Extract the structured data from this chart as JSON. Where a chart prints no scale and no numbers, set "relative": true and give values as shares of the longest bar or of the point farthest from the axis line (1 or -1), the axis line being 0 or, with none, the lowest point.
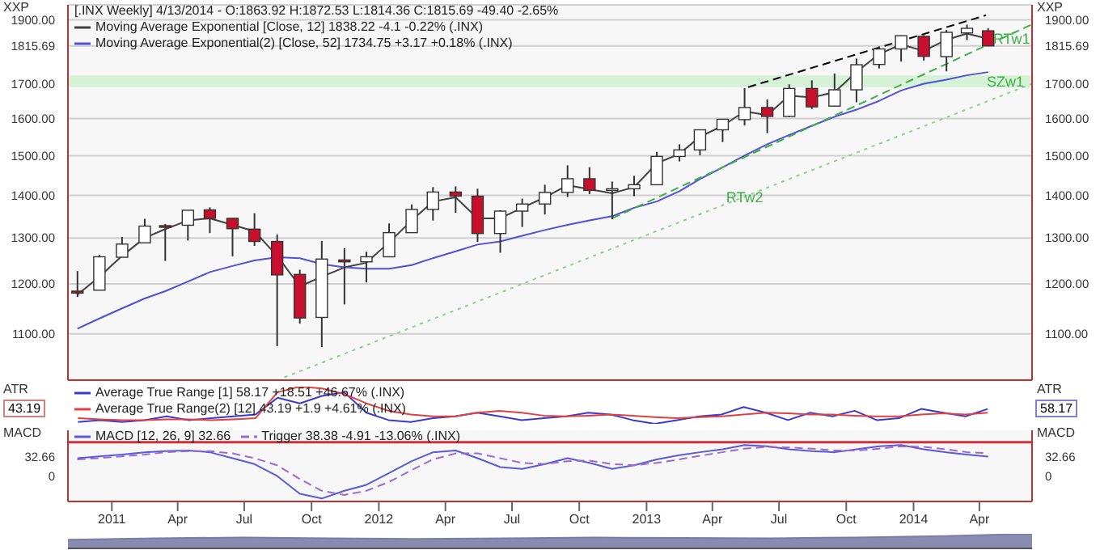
{
  "chart_data": [
    {
      "type": "candlestick",
      "title": "[.INX  Weekly] 4/13/2014 - O:1863.92 H:1872.53 L:1814.36 C:1815.69 -49.40 -2.65%",
      "ylabel": "XXP",
      "y2label": "XXP",
      "x": [
        "2010-11-15",
        "2010-12-15",
        "2011-01-15",
        "2011-02-15",
        "2011-03-15",
        "2011-04-15",
        "2011-05-15",
        "2011-06-15",
        "2011-07-15",
        "2011-08-15",
        "2011-09-15",
        "2011-10-15",
        "2011-11-15",
        "2011-12-15",
        "2012-01-15",
        "2012-02-15",
        "2012-03-15",
        "2012-04-15",
        "2012-05-15",
        "2012-06-15",
        "2012-07-15",
        "2012-08-15",
        "2012-09-15",
        "2012-10-15",
        "2012-11-15",
        "2012-12-15",
        "2013-01-15",
        "2013-02-15",
        "2013-03-15",
        "2013-04-15",
        "2013-05-15",
        "2013-06-15",
        "2013-07-15",
        "2013-08-15",
        "2013-09-15",
        "2013-10-15",
        "2013-11-15",
        "2013-12-15",
        "2014-01-15",
        "2014-02-15",
        "2014-03-15",
        "2014-04-13"
      ],
      "ohlc": [
        [
          1185,
          1227,
          1173,
          1181
        ],
        [
          1187,
          1262,
          1187,
          1258
        ],
        [
          1257,
          1302,
          1257,
          1286
        ],
        [
          1289,
          1344,
          1289,
          1327
        ],
        [
          1328,
          1332,
          1249,
          1326
        ],
        [
          1329,
          1364,
          1294,
          1364
        ],
        [
          1365,
          1371,
          1311,
          1345
        ],
        [
          1345,
          1345,
          1259,
          1321
        ],
        [
          1320,
          1357,
          1282,
          1292
        ],
        [
          1292,
          1308,
          1077,
          1219
        ],
        [
          1220,
          1230,
          1120,
          1131
        ],
        [
          1132,
          1293,
          1075,
          1253
        ],
        [
          1251,
          1277,
          1158,
          1247
        ],
        [
          1247,
          1269,
          1203,
          1258
        ],
        [
          1258,
          1333,
          1258,
          1312
        ],
        [
          1312,
          1378,
          1312,
          1366
        ],
        [
          1366,
          1420,
          1340,
          1408
        ],
        [
          1408,
          1422,
          1358,
          1398
        ],
        [
          1398,
          1416,
          1291,
          1310
        ],
        [
          1310,
          1364,
          1267,
          1362
        ],
        [
          1362,
          1392,
          1325,
          1379
        ],
        [
          1379,
          1426,
          1354,
          1407
        ],
        [
          1407,
          1475,
          1396,
          1441
        ],
        [
          1441,
          1470,
          1403,
          1412
        ],
        [
          1412,
          1434,
          1343,
          1416
        ],
        [
          1416,
          1448,
          1398,
          1426
        ],
        [
          1426,
          1510,
          1426,
          1498
        ],
        [
          1498,
          1530,
          1485,
          1515
        ],
        [
          1515,
          1570,
          1501,
          1569
        ],
        [
          1569,
          1598,
          1536,
          1598
        ],
        [
          1597,
          1687,
          1581,
          1631
        ],
        [
          1631,
          1654,
          1560,
          1606
        ],
        [
          1606,
          1698,
          1604,
          1686
        ],
        [
          1686,
          1710,
          1627,
          1633
        ],
        [
          1635,
          1730,
          1633,
          1682
        ],
        [
          1682,
          1776,
          1646,
          1757
        ],
        [
          1758,
          1814,
          1746,
          1806
        ],
        [
          1806,
          1849,
          1767,
          1848
        ],
        [
          1846,
          1850,
          1770,
          1783
        ],
        [
          1782,
          1867,
          1737,
          1859
        ],
        [
          1857,
          1884,
          1834,
          1872
        ],
        [
          1863.92,
          1872.53,
          1814.36,
          1815.69
        ]
      ],
      "colors": [
        "#c8102e",
        "#ffffff",
        "#ffffff",
        "#ffffff",
        "#c8102e",
        "#ffffff",
        "#c8102e",
        "#c8102e",
        "#c8102e",
        "#c8102e",
        "#c8102e",
        "#ffffff",
        "#c8102e",
        "#ffffff",
        "#ffffff",
        "#ffffff",
        "#ffffff",
        "#c8102e",
        "#c8102e",
        "#ffffff",
        "#ffffff",
        "#ffffff",
        "#ffffff",
        "#c8102e",
        "#ffffff",
        "#ffffff",
        "#ffffff",
        "#ffffff",
        "#ffffff",
        "#ffffff",
        "#ffffff",
        "#c8102e",
        "#ffffff",
        "#c8102e",
        "#ffffff",
        "#ffffff",
        "#ffffff",
        "#ffffff",
        "#c8102e",
        "#ffffff",
        "#ffffff",
        "#c8102e"
      ],
      "series": [
        {
          "type": "line",
          "name": "Moving Average Exponential [Close, 12] 1838.22 -4.1 -0.22% (.INX)",
          "color": "#404040",
          "values": [
            1178,
            1215,
            1260,
            1300,
            1320,
            1340,
            1345,
            1330,
            1315,
            1260,
            1195,
            1215,
            1235,
            1245,
            1290,
            1340,
            1385,
            1395,
            1345,
            1345,
            1370,
            1395,
            1425,
            1415,
            1405,
            1420,
            1480,
            1505,
            1550,
            1580,
            1620,
            1610,
            1665,
            1660,
            1675,
            1735,
            1790,
            1820,
            1800,
            1835,
            1855,
            1838.22
          ]
        },
        {
          "type": "line",
          "name": "Moving Average Exponential(2) [Close, 52] 1734.75 +3.17 +0.18% (.INX)",
          "color": "#5050d8",
          "values": [
            1110,
            1130,
            1150,
            1170,
            1185,
            1205,
            1225,
            1238,
            1250,
            1257,
            1255,
            1242,
            1235,
            1232,
            1232,
            1240,
            1255,
            1270,
            1285,
            1292,
            1305,
            1318,
            1330,
            1340,
            1350,
            1370,
            1385,
            1410,
            1440,
            1470,
            1500,
            1530,
            1555,
            1580,
            1605,
            1625,
            1650,
            1680,
            1700,
            1712,
            1725,
            1734.75
          ]
        },
        {
          "type": "line",
          "color": "#000000",
          "line_style": "dashed",
          "x": [
            "2013-05-20",
            "2014-04-10"
          ],
          "values": [
            1690,
            1915
          ]
        },
        {
          "type": "line",
          "color": "#3cb043",
          "line_style": "dashed",
          "x": [
            "2012-11-15",
            "2014-06-12"
          ],
          "values": [
            1345,
            1885
          ]
        },
        {
          "type": "line",
          "color": "#8fd08f",
          "line_style": "dotted",
          "x": [
            "2011-08-25",
            "2014-06-12"
          ],
          "values": [
            1020,
            1700
          ]
        }
      ],
      "bands": [
        {
          "axis": "y",
          "from": 1690,
          "to": 1725,
          "label": "SZw1",
          "color": "#d6f2d6"
        }
      ],
      "annotations": [
        {
          "text": "RTw1",
          "x": "2014-05-15",
          "y": 1840
        },
        {
          "text": "RTw2",
          "x": "2013-05-15",
          "y": 1395
        }
      ],
      "xlim": [
        "2010-11-02",
        "2014-06-12"
      ],
      "xticks": [
        {
          "value": "2011-01-01",
          "label": null
        },
        {
          "value": "2012-01-01",
          "label": null
        },
        {
          "value": "2013-01-01",
          "label": null
        },
        {
          "value": "2014-01-01",
          "label": null
        }
      ],
      "ylim": [
        1015,
        1950
      ],
      "yticks": [
        {
          "value": 1100,
          "label": "1100.00"
        },
        {
          "value": 1200,
          "label": "1200.00"
        },
        {
          "value": 1300,
          "label": "1300.00"
        },
        {
          "value": 1400,
          "label": "1400.00"
        },
        {
          "value": 1500,
          "label": "1500.00"
        },
        {
          "value": 1600,
          "label": "1600.00"
        },
        {
          "value": 1700,
          "label": "1700.00"
        },
        {
          "value": 1815.69,
          "label": "1815.69"
        },
        {
          "value": 1900,
          "label": "1900.00"
        }
      ],
      "log": true,
      "grid": true,
      "legend": "top left",
      "tick_labels": "y"
    },
    {
      "type": "line",
      "relative": true,
      "ylabel": "ATR",
      "y2label": "ATR",
      "annotations": [
        "43.19",
        "58.17"
      ],
      "categories": [
        null,
        null,
        null,
        null,
        null,
        null,
        null,
        null,
        null,
        null,
        null,
        null,
        null,
        null,
        null,
        null,
        null,
        null,
        null,
        null,
        null,
        null,
        null,
        null,
        null,
        null,
        null,
        null,
        null,
        null,
        null,
        null,
        null,
        null,
        null,
        null,
        null,
        null,
        null,
        null,
        null,
        null
      ],
      "series": [
        {
          "name": "Average True Range [1] 58.17 +18.51 +46.67% (.INX)",
          "color": "#3a3ad0",
          "values": [
            0.05,
            0.1,
            0.05,
            0.1,
            0.2,
            0.1,
            0.15,
            0.2,
            0.25,
            0.7,
            0.55,
            0.75,
            0.85,
            0.3,
            0.1,
            0.05,
            0.15,
            0.2,
            0.3,
            0.2,
            0.1,
            0.15,
            0.2,
            0.3,
            0.25,
            0.1,
            0,
            0.1,
            0.2,
            0.25,
            0.45,
            0.3,
            0.1,
            0.3,
            0.2,
            0.35,
            0.1,
            0.15,
            0.4,
            0.3,
            0.2,
            0.4
          ]
        },
        {
          "name": "Average True Range(2) [12] 43.19 +1.9 +4.61% (.INX)",
          "color": "#e04040",
          "values": [
            0.15,
            0.12,
            0.1,
            0.1,
            0.12,
            0.12,
            0.1,
            0.12,
            0.15,
            0.85,
            1,
            0.95,
            0.8,
            0.55,
            0.35,
            0.25,
            0.2,
            0.2,
            0.3,
            0.35,
            0.3,
            0.22,
            0.2,
            0.22,
            0.25,
            0.22,
            0.18,
            0.15,
            0.18,
            0.2,
            0.25,
            0.3,
            0.28,
            0.25,
            0.25,
            0.22,
            0.2,
            0.2,
            0.25,
            0.28,
            0.25,
            0.3
          ]
        }
      ],
      "legend": "top left",
      "tick_labels": false
    },
    {
      "type": "line",
      "ylabel": "MACD",
      "y2label": "MACD",
      "x": [
        "2010-11-15",
        "2010-12-15",
        "2011-01-15",
        "2011-02-15",
        "2011-03-15",
        "2011-04-15",
        "2011-05-15",
        "2011-06-15",
        "2011-07-15",
        "2011-08-15",
        "2011-09-15",
        "2011-10-15",
        "2011-11-15",
        "2011-12-15",
        "2012-01-15",
        "2012-02-15",
        "2012-03-15",
        "2012-04-15",
        "2012-05-15",
        "2012-06-15",
        "2012-07-15",
        "2012-08-15",
        "2012-09-15",
        "2012-10-15",
        "2012-11-15",
        "2012-12-15",
        "2013-01-15",
        "2013-02-15",
        "2013-03-15",
        "2013-04-15",
        "2013-05-15",
        "2013-06-15",
        "2013-07-15",
        "2013-08-15",
        "2013-09-15",
        "2013-10-15",
        "2013-11-15",
        "2013-12-15",
        "2014-01-15",
        "2014-02-15",
        "2014-03-15",
        "2014-04-13"
      ],
      "series": [
        {
          "name": "MACD [12, 26, 9] 32.66",
          "color": "#5a5ad8",
          "values": [
            30,
            33,
            36,
            40,
            42,
            43,
            40,
            30,
            20,
            0,
            -30,
            -38,
            -25,
            -15,
            5,
            25,
            40,
            43,
            30,
            15,
            12,
            20,
            30,
            22,
            12,
            18,
            28,
            35,
            40,
            45,
            52,
            50,
            45,
            42,
            40,
            45,
            50,
            52,
            45,
            40,
            36,
            32.66
          ]
        },
        {
          "name": "Trigger 38.38 -4.91 -13.06% (.INX)",
          "color": "#9a6ad0",
          "line_style": "dashed",
          "values": [
            28,
            30,
            33,
            36,
            40,
            42,
            42,
            38,
            30,
            18,
            -5,
            -25,
            -32,
            -25,
            -10,
            10,
            28,
            38,
            38,
            30,
            22,
            20,
            25,
            26,
            20,
            18,
            22,
            28,
            34,
            40,
            46,
            49,
            48,
            46,
            43,
            43,
            46,
            50,
            49,
            45,
            40,
            38.38
          ]
        }
      ],
      "ref_lines": [
        {
          "axis": "y",
          "value": 57,
          "color": "#d0303a"
        }
      ],
      "xlim": [
        "2010-11-02",
        "2014-06-12"
      ],
      "xticks": [
        {
          "value": "2011-01-01",
          "label": "2011"
        },
        {
          "value": "2011-04-01",
          "label": "Apr"
        },
        {
          "value": "2011-07-01",
          "label": "Jul"
        },
        {
          "value": "2011-10-01",
          "label": "Oct"
        },
        {
          "value": "2012-01-01",
          "label": "2012"
        },
        {
          "value": "2012-04-01",
          "label": "Apr"
        },
        {
          "value": "2012-07-01",
          "label": "Jul"
        },
        {
          "value": "2012-10-01",
          "label": "Oct"
        },
        {
          "value": "2013-01-01",
          "label": "2013"
        },
        {
          "value": "2013-04-01",
          "label": "Apr"
        },
        {
          "value": "2013-07-01",
          "label": "Jul"
        },
        {
          "value": "2013-10-01",
          "label": "Oct"
        },
        {
          "value": "2014-01-01",
          "label": "2014"
        },
        {
          "value": "2014-04-01",
          "label": "Apr"
        }
      ],
      "ylim": [
        -43,
        77
      ],
      "yticks": [
        0,
        32.66
      ],
      "y2lim": [
        -43,
        77
      ],
      "y2ticks": [
        0,
        32.66
      ],
      "legend": "top left"
    },
    {
      "type": "area",
      "relative": true,
      "categories": [
        null,
        null,
        null,
        null,
        null,
        null,
        null,
        null,
        null,
        null,
        null,
        null
      ],
      "values": [
        0.6,
        0.7,
        0.75,
        0.7,
        0.65,
        0.7,
        0.75,
        0.72,
        0.7,
        0.75,
        0.85,
        1
      ],
      "color": "#7c7ea8",
      "tick_labels": false
    }
  ]
}
